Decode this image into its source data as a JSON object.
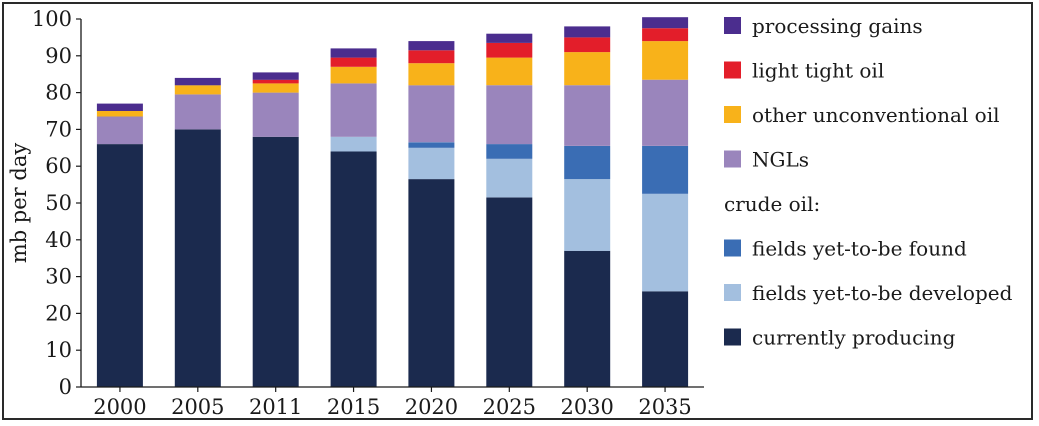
{
  "chart_data": {
    "type": "bar",
    "stacked": true,
    "ylabel": "mb per day",
    "ylim": [
      0,
      100
    ],
    "yticks": [
      0,
      10,
      20,
      30,
      40,
      50,
      60,
      70,
      80,
      90,
      100
    ],
    "categories": [
      "2000",
      "2005",
      "2011",
      "2015",
      "2020",
      "2025",
      "2030",
      "2035"
    ],
    "legend_position": "right",
    "legend_group_heading": "crude oil:",
    "series": [
      {
        "name": "currently producing",
        "color": "#1b2a4e",
        "values": [
          66,
          70,
          68,
          64,
          56.5,
          51.5,
          37,
          26
        ]
      },
      {
        "name": "fields yet-to-be developed",
        "color": "#a3bfdf",
        "values": [
          0,
          0,
          0,
          4,
          8.5,
          10.5,
          19.5,
          26.5
        ]
      },
      {
        "name": "fields yet-to-be found",
        "color": "#3a6db4",
        "values": [
          0,
          0,
          0,
          0,
          1.5,
          4,
          9,
          13
        ]
      },
      {
        "name": "NGLs",
        "color": "#9a85bc",
        "values": [
          7.5,
          9.5,
          12,
          14.5,
          15.5,
          16,
          16.5,
          18
        ]
      },
      {
        "name": "other unconventional oil",
        "color": "#f8b21a",
        "values": [
          1.5,
          2.5,
          2.5,
          4.5,
          6,
          7.5,
          9,
          10.5
        ]
      },
      {
        "name": "light tight oil",
        "color": "#e31e2a",
        "values": [
          0,
          0,
          1,
          2.5,
          3.5,
          4,
          4,
          3.5
        ]
      },
      {
        "name": "processing gains",
        "color": "#4b2d8e",
        "values": [
          2,
          2,
          2,
          2.5,
          2.5,
          2.5,
          3,
          3
        ]
      }
    ],
    "legend_order": [
      "processing gains",
      "light tight oil",
      "other unconventional oil",
      "NGLs",
      "crude oil:",
      "fields yet-to-be found",
      "fields yet-to-be developed",
      "currently producing"
    ]
  }
}
